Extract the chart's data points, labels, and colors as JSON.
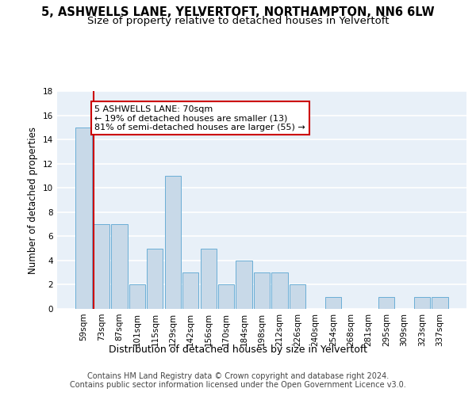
{
  "title1": "5, ASHWELLS LANE, YELVERTOFT, NORTHAMPTON, NN6 6LW",
  "title2": "Size of property relative to detached houses in Yelvertoft",
  "xlabel": "Distribution of detached houses by size in Yelvertoft",
  "ylabel": "Number of detached properties",
  "categories": [
    "59sqm",
    "73sqm",
    "87sqm",
    "101sqm",
    "115sqm",
    "129sqm",
    "142sqm",
    "156sqm",
    "170sqm",
    "184sqm",
    "198sqm",
    "212sqm",
    "226sqm",
    "240sqm",
    "254sqm",
    "268sqm",
    "281sqm",
    "295sqm",
    "309sqm",
    "323sqm",
    "337sqm"
  ],
  "values": [
    15,
    7,
    7,
    2,
    5,
    11,
    3,
    5,
    2,
    4,
    3,
    3,
    2,
    0,
    1,
    0,
    0,
    1,
    0,
    1,
    1
  ],
  "bar_color": "#c8d9e8",
  "bar_edge_color": "#6aaed6",
  "annotation_text": "5 ASHWELLS LANE: 70sqm\n← 19% of detached houses are smaller (13)\n81% of semi-detached houses are larger (55) →",
  "annotation_box_facecolor": "#ffffff",
  "annotation_box_edgecolor": "#cc0000",
  "vline_color": "#cc0000",
  "footer1": "Contains HM Land Registry data © Crown copyright and database right 2024.",
  "footer2": "Contains public sector information licensed under the Open Government Licence v3.0.",
  "ylim": [
    0,
    18
  ],
  "yticks": [
    0,
    2,
    4,
    6,
    8,
    10,
    12,
    14,
    16,
    18
  ],
  "bg_color": "#e8f0f8",
  "grid_color": "#ffffff",
  "title1_fontsize": 10.5,
  "title2_fontsize": 9.5,
  "xlabel_fontsize": 9,
  "ylabel_fontsize": 8.5,
  "tick_fontsize": 7.5,
  "annotation_fontsize": 8,
  "footer_fontsize": 7
}
